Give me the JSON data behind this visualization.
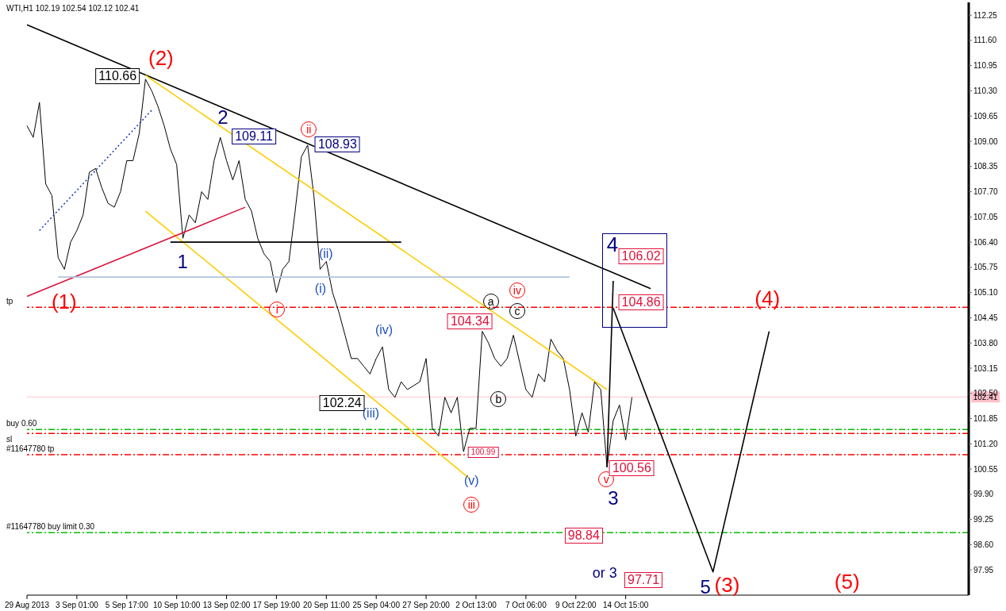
{
  "chart_data": {
    "type": "line",
    "title": "WTI,H1 102.19 102.54 102.12 102.41",
    "categories": [
      "29 Aug 2013",
      null,
      null,
      null,
      null,
      null,
      null,
      null,
      "3 Sep 01:00",
      null,
      null,
      null,
      null,
      null,
      null,
      null,
      "5 Sep 17:00",
      null,
      null,
      null,
      null,
      null,
      null,
      null,
      "10 Sep 10:00",
      null,
      null,
      null,
      null,
      null,
      null,
      null,
      "13 Sep 02:00",
      null,
      null,
      null,
      null,
      null,
      null,
      null,
      "17 Sep 19:00",
      null,
      null,
      null,
      null,
      null,
      null,
      null,
      "20 Sep 11:00",
      null,
      null,
      null,
      null,
      null,
      null,
      null,
      "25 Sep 04:00",
      null,
      null,
      null,
      null,
      null,
      null,
      null,
      "27 Sep 20:00",
      null,
      null,
      null,
      null,
      null,
      null,
      null,
      "2 Oct 13:00",
      null,
      null,
      null,
      null,
      null,
      null,
      null,
      "7 Oct 06:00",
      null,
      null,
      null,
      null,
      null,
      null,
      null,
      "9 Oct 22:00",
      null,
      null,
      null,
      null,
      null,
      null,
      null,
      "14 Oct 15:00",
      null,
      null,
      null,
      null,
      null,
      null,
      null,
      null,
      null,
      null,
      null,
      null,
      null,
      null,
      null,
      null,
      null,
      null,
      null,
      null,
      null,
      null,
      null,
      null,
      null,
      null,
      null,
      null,
      null,
      null,
      null,
      null,
      null,
      null,
      null,
      null,
      null,
      null,
      null,
      null,
      null,
      null,
      null,
      null,
      null,
      null,
      null,
      null,
      null,
      null,
      null,
      null,
      null,
      null,
      null
    ],
    "series": [
      {
        "color": "#000000",
        "values": [
          109.4,
          109.1,
          110.0,
          107.9,
          107.6,
          106.0,
          105.7,
          106.4,
          106.7,
          107.1,
          108.2,
          108.3,
          107.8,
          107.4,
          107.3,
          107.7,
          108.5,
          108.5,
          109.2,
          110.6,
          110.3,
          109.9,
          109.4,
          108.8,
          108.4,
          106.5,
          107.1,
          106.9,
          107.7,
          107.5,
          108.5,
          109.1,
          108.5,
          108.0,
          108.5,
          107.5,
          107.2,
          106.5,
          106.1,
          105.9,
          105.1,
          105.7,
          105.9,
          107.2,
          108.6,
          108.9,
          107.6,
          105.7,
          105.9,
          105.1,
          104.6,
          104.0,
          103.4,
          103.4,
          103.2,
          103.0,
          103.4,
          103.7,
          102.6,
          102.4,
          102.8,
          102.6,
          102.7,
          102.8,
          103.4,
          101.6,
          101.4,
          102.4,
          102.0,
          102.4,
          101.0,
          101.6,
          101.6,
          104.1,
          103.8,
          103.4,
          103.2,
          103.4,
          104.0,
          103.3,
          102.6,
          102.4,
          103.0,
          102.8,
          103.9,
          103.6,
          103.4,
          102.6,
          101.4,
          102.0,
          101.5,
          102.8,
          102.6,
          100.6,
          101.8,
          102.2,
          101.3,
          102.4,
          null,
          null,
          null,
          null,
          null,
          null,
          null,
          null,
          null,
          null,
          null,
          null,
          null,
          null,
          null,
          null,
          null,
          null,
          null,
          null,
          null,
          null,
          null,
          null,
          null,
          null,
          null,
          null,
          null,
          null,
          null,
          null,
          null,
          null,
          null,
          null,
          null,
          null,
          null,
          null,
          null,
          null,
          null,
          null,
          null,
          null,
          null,
          null,
          null,
          null,
          null,
          null,
          null,
          null
        ]
      },
      {
        "color": "#000000",
        "values": [
          112.0,
          null,
          null,
          null,
          null,
          null,
          null,
          null,
          null,
          null,
          null,
          null,
          null,
          null,
          null,
          null,
          null,
          null,
          null,
          null,
          null,
          null,
          null,
          null,
          null,
          null,
          null,
          null,
          null,
          null,
          null,
          null,
          null,
          null,
          null,
          null,
          null,
          null,
          null,
          null,
          null,
          null,
          null,
          null,
          null,
          null,
          null,
          null,
          null,
          null,
          null,
          null,
          null,
          null,
          null,
          null,
          null,
          null,
          null,
          null,
          null,
          null,
          null,
          null,
          null,
          null,
          null,
          null,
          null,
          null,
          null,
          null,
          null,
          null,
          null,
          null,
          null,
          null,
          null,
          null,
          null,
          null,
          null,
          null,
          null,
          null,
          null,
          null,
          null,
          null,
          null,
          null,
          null,
          null,
          null,
          null,
          null,
          null,
          null,
          null,
          105.2,
          null,
          null,
          null,
          null,
          null,
          null,
          null,
          null,
          null,
          null,
          null,
          null,
          null,
          null,
          null,
          null,
          null,
          null,
          null,
          null,
          null,
          null,
          null,
          null,
          null,
          null,
          null,
          null,
          null,
          null,
          null,
          null,
          null,
          null,
          null,
          null,
          null,
          null,
          null,
          null,
          null,
          null,
          null,
          null,
          null,
          null,
          null,
          null,
          null,
          null,
          null
        ]
      },
      {
        "color": "#ffcc00",
        "values": [
          null,
          null,
          null,
          null,
          null,
          null,
          null,
          null,
          null,
          null,
          null,
          null,
          null,
          null,
          null,
          null,
          null,
          null,
          null,
          110.7,
          null,
          null,
          null,
          null,
          null,
          null,
          null,
          null,
          null,
          null,
          null,
          null,
          null,
          null,
          null,
          null,
          null,
          null,
          null,
          null,
          null,
          null,
          null,
          null,
          null,
          null,
          null,
          null,
          null,
          null,
          null,
          null,
          null,
          null,
          null,
          null,
          null,
          null,
          null,
          null,
          null,
          null,
          null,
          null,
          null,
          null,
          null,
          null,
          null,
          null,
          null,
          null,
          null,
          null,
          null,
          null,
          null,
          null,
          null,
          null,
          null,
          null,
          null,
          null,
          null,
          null,
          null,
          null,
          null,
          null,
          null,
          null,
          null,
          102.6,
          null,
          null,
          null,
          null,
          null,
          null,
          null,
          null,
          null,
          null,
          null,
          null,
          null,
          null,
          null,
          null,
          null,
          null,
          null,
          null,
          null,
          null,
          null,
          null,
          null,
          null,
          null,
          null,
          null,
          null,
          null,
          null,
          null,
          null,
          null,
          null,
          null,
          null,
          null,
          null,
          null,
          null,
          null,
          null,
          null,
          null,
          null,
          null,
          null,
          null,
          null,
          null,
          null,
          null,
          null,
          null,
          null,
          null
        ]
      },
      {
        "color": "#ffcc00",
        "values": [
          null,
          null,
          null,
          null,
          null,
          null,
          null,
          null,
          null,
          null,
          null,
          null,
          null,
          null,
          null,
          null,
          null,
          null,
          null,
          107.2,
          null,
          null,
          null,
          null,
          null,
          null,
          null,
          null,
          null,
          null,
          null,
          null,
          null,
          null,
          null,
          null,
          null,
          null,
          null,
          null,
          null,
          null,
          null,
          null,
          null,
          null,
          null,
          null,
          null,
          null,
          null,
          null,
          null,
          null,
          null,
          null,
          null,
          null,
          null,
          null,
          null,
          null,
          null,
          null,
          null,
          null,
          null,
          null,
          null,
          null,
          null,
          100.3,
          null,
          null,
          null,
          null,
          null,
          null,
          null,
          null,
          null,
          null,
          null,
          null,
          null,
          null,
          null,
          null,
          null,
          null,
          null,
          null,
          null,
          null,
          null,
          null,
          null,
          null,
          null,
          null,
          null,
          null,
          null,
          null,
          null,
          null,
          null,
          null,
          null,
          null,
          null,
          null,
          null,
          null,
          null,
          null,
          null,
          null,
          null,
          null,
          null,
          null,
          null,
          null,
          null,
          null,
          null,
          null,
          null,
          null,
          null,
          null,
          null,
          null,
          null,
          null,
          null,
          null,
          null,
          null,
          null,
          null,
          null,
          null,
          null,
          null,
          null,
          null,
          null,
          null,
          null,
          null
        ]
      },
      {
        "color": "#dc143c",
        "values": [
          105.0,
          null,
          null,
          null,
          null,
          null,
          null,
          null,
          null,
          null,
          null,
          null,
          null,
          null,
          null,
          null,
          null,
          null,
          null,
          null,
          null,
          null,
          null,
          null,
          null,
          null,
          null,
          null,
          null,
          null,
          null,
          null,
          null,
          null,
          null,
          107.3,
          null,
          null,
          null,
          null,
          null,
          null,
          null,
          null,
          null,
          null,
          null,
          null,
          null,
          null,
          null,
          null,
          null,
          null,
          null,
          null,
          null,
          null,
          null,
          null,
          null,
          null,
          null,
          null,
          null,
          null,
          null,
          null,
          null,
          null,
          null,
          null,
          null,
          null,
          null,
          null,
          null,
          null,
          null,
          null,
          null,
          null,
          null,
          null,
          null,
          null,
          null,
          null,
          null,
          null,
          null,
          null,
          null,
          null,
          null,
          null,
          null,
          null,
          null,
          null,
          null,
          null,
          null,
          null,
          null,
          null,
          null,
          null,
          null,
          null,
          null,
          null,
          null,
          null,
          null,
          null,
          null,
          null,
          null,
          null,
          null,
          null,
          null,
          null,
          null,
          null,
          null,
          null,
          null,
          null,
          null,
          null,
          null,
          null,
          null,
          null,
          null,
          null,
          null,
          null,
          null,
          null,
          null,
          null,
          null,
          null,
          null,
          null,
          null,
          null,
          null,
          null
        ]
      },
      {
        "color": "#1e3fbf",
        "line_style": "dotted",
        "values": [
          null,
          null,
          106.7,
          null,
          null,
          null,
          null,
          null,
          null,
          null,
          null,
          null,
          null,
          null,
          null,
          null,
          null,
          null,
          null,
          null,
          109.8,
          null,
          null,
          null,
          null,
          null,
          null,
          null,
          null,
          null,
          null,
          null,
          null,
          null,
          null,
          null,
          null,
          null,
          null,
          null,
          null,
          null,
          null,
          null,
          null,
          null,
          null,
          null,
          null,
          null,
          null,
          null,
          null,
          null,
          null,
          null,
          null,
          null,
          null,
          null,
          null,
          null,
          null,
          null,
          null,
          null,
          null,
          null,
          null,
          null,
          null,
          null,
          null,
          null,
          null,
          null,
          null,
          null,
          null,
          null,
          null,
          null,
          null,
          null,
          null,
          null,
          null,
          null,
          null,
          null,
          null,
          null,
          null,
          null,
          null,
          null,
          null,
          null,
          null,
          null,
          null,
          null,
          null,
          null,
          null,
          null,
          null,
          null,
          null,
          null,
          null,
          null,
          null,
          null,
          null,
          null,
          null,
          null,
          null,
          null,
          null,
          null,
          null,
          null,
          null,
          null,
          null,
          null,
          null,
          null,
          null,
          null,
          null,
          null,
          null,
          null,
          null,
          null,
          null,
          null,
          null,
          null,
          null,
          null,
          null,
          null,
          null,
          null,
          null,
          null,
          null,
          null
        ]
      },
      {
        "color": "#000000",
        "values": [
          null,
          null,
          null,
          null,
          null,
          null,
          null,
          null,
          null,
          null,
          null,
          null,
          null,
          null,
          null,
          null,
          null,
          null,
          null,
          null,
          null,
          null,
          null,
          106.4,
          null,
          null,
          null,
          null,
          null,
          null,
          null,
          null,
          null,
          null,
          null,
          null,
          null,
          null,
          null,
          null,
          null,
          null,
          null,
          null,
          null,
          null,
          null,
          null,
          null,
          null,
          null,
          null,
          null,
          null,
          null,
          null,
          null,
          null,
          null,
          null,
          106.4,
          null,
          null,
          null,
          null,
          null,
          null,
          null,
          null,
          null,
          null,
          null,
          null,
          null,
          null,
          null,
          null,
          null,
          null,
          null,
          null,
          null,
          null,
          null,
          null,
          null,
          null,
          null,
          null,
          null,
          null,
          null,
          null,
          null,
          null,
          null,
          null,
          null,
          null,
          null,
          null,
          null,
          null,
          null,
          null,
          null,
          null,
          null,
          null,
          null,
          null,
          null,
          null,
          null,
          null,
          null,
          null,
          null,
          null,
          null,
          null,
          null,
          null,
          null,
          null,
          null,
          null,
          null,
          null,
          null,
          null,
          null,
          null,
          null,
          null,
          null,
          null,
          null,
          null,
          null,
          null,
          null,
          null,
          null,
          null,
          null,
          null,
          null,
          null,
          null,
          null,
          null
        ]
      },
      {
        "color": "#b0c4de",
        "values": [
          null,
          null,
          null,
          null,
          null,
          105.5,
          null,
          null,
          null,
          null,
          null,
          null,
          null,
          null,
          null,
          null,
          null,
          null,
          null,
          null,
          null,
          null,
          null,
          null,
          null,
          null,
          null,
          null,
          null,
          null,
          null,
          null,
          null,
          null,
          null,
          null,
          null,
          null,
          null,
          null,
          null,
          null,
          null,
          null,
          null,
          null,
          null,
          null,
          null,
          null,
          null,
          null,
          null,
          null,
          null,
          null,
          null,
          null,
          null,
          null,
          null,
          null,
          null,
          null,
          null,
          null,
          null,
          null,
          null,
          null,
          null,
          null,
          null,
          null,
          null,
          null,
          null,
          null,
          null,
          null,
          null,
          null,
          null,
          null,
          null,
          null,
          null,
          105.5,
          null,
          null,
          null,
          null,
          null,
          null,
          null,
          null,
          null,
          null,
          null,
          null,
          null,
          null,
          null,
          null,
          null,
          null,
          null,
          null,
          null,
          null,
          null,
          null,
          null,
          null,
          null,
          null,
          null,
          null,
          null,
          null,
          null,
          null,
          null,
          null,
          null,
          null,
          null,
          null,
          null,
          null,
          null,
          null,
          null,
          null,
          null,
          null,
          null,
          null,
          null,
          null,
          null,
          null,
          null,
          null,
          null,
          null,
          null,
          null,
          null,
          null,
          null,
          null
        ]
      },
      {
        "color": "#000000",
        "values": [
          null,
          null,
          null,
          null,
          null,
          null,
          null,
          null,
          null,
          null,
          null,
          null,
          null,
          null,
          null,
          null,
          null,
          null,
          null,
          null,
          null,
          null,
          null,
          null,
          null,
          null,
          null,
          null,
          null,
          null,
          null,
          null,
          null,
          null,
          null,
          null,
          null,
          null,
          null,
          null,
          null,
          null,
          null,
          null,
          null,
          null,
          null,
          null,
          null,
          null,
          null,
          null,
          null,
          null,
          null,
          null,
          null,
          null,
          null,
          null,
          null,
          null,
          null,
          null,
          null,
          null,
          null,
          null,
          null,
          null,
          null,
          null,
          null,
          null,
          null,
          null,
          null,
          null,
          null,
          null,
          null,
          null,
          null,
          null,
          null,
          null,
          null,
          null,
          null,
          null,
          null,
          null,
          null,
          100.6,
          105.4,
          null,
          null,
          null,
          null,
          null,
          null,
          null,
          null,
          null,
          null,
          null,
          null,
          null,
          null,
          null,
          null,
          null,
          null,
          null,
          null,
          null,
          null,
          null,
          null,
          null,
          null,
          null,
          null,
          null,
          null,
          null,
          null,
          null,
          null,
          null,
          null,
          null,
          null,
          null,
          null,
          null,
          null,
          null,
          null,
          null,
          null,
          null,
          null,
          null,
          null,
          null,
          null,
          null,
          null,
          null,
          null,
          null
        ]
      },
      {
        "color": "#000000",
        "values": [
          null,
          null,
          null,
          null,
          null,
          null,
          null,
          null,
          null,
          null,
          null,
          null,
          null,
          null,
          null,
          null,
          null,
          null,
          null,
          null,
          null,
          null,
          null,
          null,
          null,
          null,
          null,
          null,
          null,
          null,
          null,
          null,
          null,
          null,
          null,
          null,
          null,
          null,
          null,
          null,
          null,
          null,
          null,
          null,
          null,
          null,
          null,
          null,
          null,
          null,
          null,
          null,
          null,
          null,
          null,
          null,
          null,
          null,
          null,
          null,
          null,
          null,
          null,
          null,
          null,
          null,
          null,
          null,
          null,
          null,
          null,
          null,
          null,
          null,
          null,
          null,
          null,
          null,
          null,
          null,
          null,
          null,
          null,
          null,
          null,
          null,
          null,
          null,
          null,
          null,
          null,
          null,
          null,
          null,
          104.7,
          null,
          null,
          null,
          null,
          null,
          null,
          null,
          null,
          null,
          null,
          null,
          null,
          null,
          null,
          null,
          97.9,
          null,
          null,
          null,
          null,
          null,
          null,
          null,
          null,
          104.1,
          null,
          null,
          null,
          null,
          null,
          null,
          null,
          null,
          null,
          null,
          null,
          null,
          null,
          null,
          null,
          null,
          null,
          null,
          null,
          null,
          null,
          null,
          null,
          null,
          null,
          null,
          null,
          null,
          null,
          null,
          null,
          null
        ]
      }
    ],
    "ylim": [
      97.3,
      112.58
    ],
    "yticks": [
      97.95,
      {
        "value": 98.6,
        "label": "98.60"
      },
      99.25,
      {
        "value": 99.9,
        "label": "99.90"
      },
      100.55,
      {
        "value": 101.2,
        "label": "101.20"
      },
      101.85,
      {
        "value": 102.5,
        "label": "102.50"
      },
      103.15,
      {
        "value": 103.8,
        "label": "103.80"
      },
      104.45,
      {
        "value": 105.1,
        "label": "105.10"
      },
      105.75,
      {
        "value": 106.4,
        "label": "106.40"
      },
      107.05,
      {
        "value": 107.7,
        "label": "107.70"
      },
      108.35,
      {
        "value": 109,
        "label": "109.00"
      },
      109.65,
      {
        "value": 110.3,
        "label": "110.30"
      },
      110.95,
      {
        "value": 111.6,
        "label": "111.60"
      },
      112.25
    ],
    "ref_lines": [
      {
        "axis": "y",
        "value": 104.72,
        "label": "tp",
        "color": "#ff0000",
        "line_style": "dashed"
      },
      {
        "axis": "y",
        "value": 101.57,
        "label": "buy 0.60",
        "color": "#00c000",
        "line_style": "dashed"
      },
      {
        "axis": "y",
        "value": 101.47,
        "label": "sl",
        "color": "#ff0000",
        "line_style": "dashed"
      },
      {
        "axis": "y",
        "value": 100.92,
        "label": "#11647780 tp",
        "color": "#ff0000",
        "line_style": "dashed"
      },
      {
        "axis": "y",
        "value": 98.91,
        "label": "#11647780 buy limit 0.30",
        "color": "#00c000",
        "line_style": "dashed"
      },
      {
        "axis": "y",
        "value": 102.41,
        "label": "102.41",
        "color": "#ffc0cb",
        "line_style": "solid"
      }
    ],
    "annotations": [
      "(1)",
      "(2)",
      "(3)",
      "(4)",
      "(5)",
      "1",
      "2",
      "3",
      "4",
      "5",
      "or 3",
      "(i)",
      "(ii)",
      "(iii)",
      "(iv)",
      "(v)",
      "i",
      "ii",
      "iii",
      "iv",
      "v",
      "a",
      "b",
      "c",
      "110.66",
      "109.11",
      "108.93",
      "104.34",
      "102.24",
      "100.99",
      "106.02",
      "104.86",
      "100.56",
      "98.84",
      "97.71"
    ],
    "marker": "none"
  }
}
